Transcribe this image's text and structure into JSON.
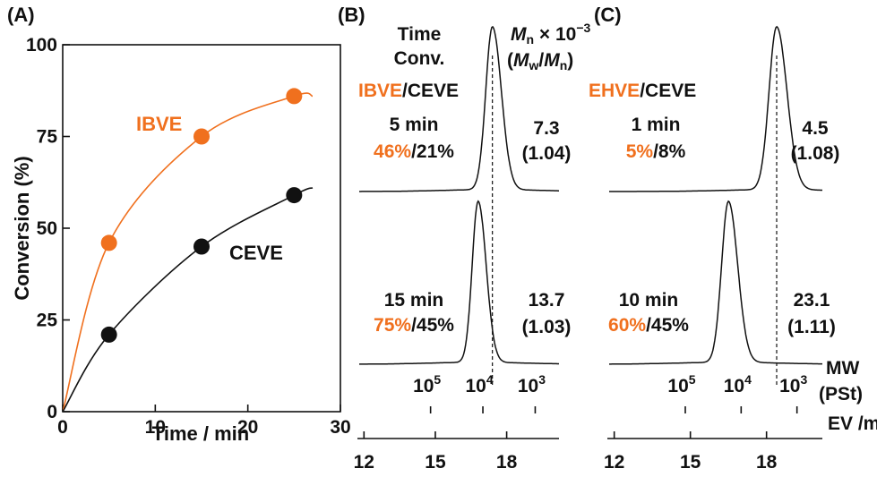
{
  "colors": {
    "ibve": "#f0701e",
    "ehve": "#f0701e",
    "ceve": "#111111",
    "axis": "#111111"
  },
  "chart_data": [
    {
      "type": "scatter",
      "panel_label": "(A)",
      "xlabel": "Time / min",
      "ylabel": "Conversion (%)",
      "xlim": [
        0,
        30
      ],
      "ylim": [
        0,
        100
      ],
      "x_ticks": [
        0,
        10,
        20,
        30
      ],
      "y_ticks": [
        0,
        25,
        50,
        75,
        100
      ],
      "grid": false,
      "series": [
        {
          "name": "IBVE",
          "color": "#f0701e",
          "x": [
            5,
            15,
            25
          ],
          "y": [
            46,
            75,
            86
          ],
          "fit_end": [
            27,
            86
          ]
        },
        {
          "name": "CEVE",
          "color": "#111111",
          "x": [
            5,
            15,
            25
          ],
          "y": [
            21,
            45,
            59
          ],
          "fit_end": [
            27,
            61
          ]
        }
      ]
    },
    {
      "type": "line",
      "panel_label": "(B)",
      "xlabel": "EV /ml",
      "x_ticks": [
        12,
        15,
        18
      ],
      "mw_ticks": [
        "10",
        "10",
        "10"
      ],
      "mw_ticks_exp": [
        "5",
        "4",
        "3"
      ],
      "mw_axis_label": "MW",
      "mw_axis_unit": "(PSt)",
      "column_header": {
        "line1": "Time",
        "line2": "Conv."
      },
      "mn_header": {
        "m": "M",
        "sub_n": "n",
        "times": " × 10",
        "exp": "−3",
        "paren_open": "(",
        "mw": "M",
        "sub_w": "w",
        "slash": "/",
        "mn": "M",
        "sub_n2": "n",
        "paren_close": ")"
      },
      "monomer_header": {
        "first": "IBVE",
        "second": "/CEVE"
      },
      "traces": [
        {
          "time": "5 min",
          "conv_first": "46%",
          "conv_rest": "/21%",
          "mn": "7.3",
          "dispersity": "(1.04)",
          "peak_ev": 17.4,
          "sigma": 0.28
        },
        {
          "time": "15 min",
          "conv_first": "75%",
          "conv_rest": "/45%",
          "mn": "13.7",
          "dispersity": "(1.03)",
          "peak_ev": 16.8,
          "sigma": 0.25
        }
      ]
    },
    {
      "type": "line",
      "panel_label": "(C)",
      "xlabel": "EV /ml",
      "x_ticks": [
        12,
        15,
        18
      ],
      "mw_ticks": [
        "10",
        "10",
        "10"
      ],
      "mw_ticks_exp": [
        "5",
        "4",
        "3"
      ],
      "monomer_header": {
        "first": "EHVE",
        "second": "/CEVE"
      },
      "traces": [
        {
          "time": "1 min",
          "conv_first": "5%",
          "conv_rest": "/8%",
          "mn": "4.5",
          "dispersity": "(1.08)",
          "peak_ev": 18.4,
          "sigma": 0.3
        },
        {
          "time": "10 min",
          "conv_first": "60%",
          "conv_rest": "/45%",
          "mn": "23.1",
          "dispersity": "(1.11)",
          "peak_ev": 16.5,
          "sigma": 0.27
        }
      ]
    }
  ]
}
